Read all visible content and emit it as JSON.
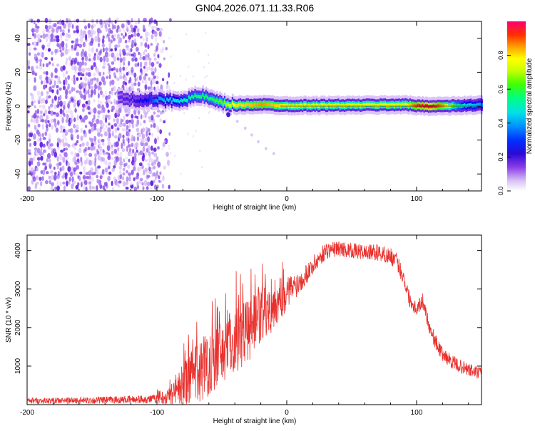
{
  "figure_title": "GN04.2026.071.11.33.R06",
  "colors": {
    "snr_line": "#e8302c",
    "frame": "#000000",
    "background": "#ffffff",
    "colormap": [
      "#ffffff",
      "#e6d2fa",
      "#b48cf0",
      "#7a2ee6",
      "#3010d8",
      "#0000ff",
      "#00a0ff",
      "#00e5e5",
      "#00ff80",
      "#40ff00",
      "#c0ff00",
      "#ffff00",
      "#ffb000",
      "#ff4000",
      "#ff0040",
      "#ff0080"
    ]
  },
  "chart_data": [
    {
      "type": "heatmap",
      "id": "spectrogram",
      "xlabel": "Height of straight line (km)",
      "ylabel": "Frequency (Hz)",
      "xlim": [
        -200,
        150
      ],
      "ylim": [
        -50,
        50
      ],
      "xticks": [
        -200,
        -100,
        0,
        100
      ],
      "yticks": [
        -40,
        -20,
        0,
        20,
        40
      ],
      "x_tick_labels": [
        "-200",
        "-100",
        "0",
        "100"
      ],
      "y_tick_labels": [
        "-40",
        "-20",
        "0",
        "20",
        "40"
      ],
      "colorbar": {
        "label": "Normalized spectral amplitude",
        "range": [
          0,
          1
        ],
        "ticks": [
          0.0,
          0.2,
          0.4,
          0.6,
          0.8
        ],
        "tick_labels": [
          "0.0",
          "0.2",
          "0.4",
          "0.6",
          "0.8"
        ]
      },
      "noise_region": {
        "x": [
          -200,
          -100
        ],
        "y": [
          -50,
          50
        ]
      },
      "ridge": {
        "x": [
          -130,
          -120,
          -110,
          -100,
          -90,
          -80,
          -70,
          -65,
          -60,
          -50,
          -40,
          -30,
          -20,
          -10,
          0,
          20,
          40,
          60,
          80,
          90,
          100,
          110,
          120,
          130,
          140,
          150
        ],
        "frequency": [
          4.5,
          4.0,
          3.8,
          3.5,
          3.2,
          4.0,
          5.5,
          6.0,
          4.0,
          1.5,
          0.5,
          0.8,
          1.0,
          0.6,
          0.3,
          0.4,
          0.5,
          0.6,
          0.8,
          0.9,
          0.2,
          0.0,
          0.0,
          0.2,
          0.5,
          0.8
        ],
        "amplitude": [
          0.22,
          0.25,
          0.32,
          0.4,
          0.45,
          0.5,
          0.55,
          0.55,
          0.55,
          0.62,
          0.75,
          0.78,
          0.82,
          0.78,
          0.72,
          0.72,
          0.7,
          0.72,
          0.72,
          0.7,
          0.88,
          0.95,
          0.8,
          0.55,
          0.45,
          0.4
        ]
      },
      "secondary_trail": {
        "x": [
          -45,
          -38,
          -32,
          -27,
          -22,
          -16,
          -10
        ],
        "frequency": [
          -5,
          -9,
          -13,
          -17,
          -21,
          -25,
          -28
        ]
      }
    },
    {
      "type": "line",
      "id": "snr",
      "xlabel": "Height of straight line (km)",
      "ylabel": "SNR (10 * v/v)",
      "xlim": [
        -200,
        150
      ],
      "ylim": [
        0,
        4400
      ],
      "xticks": [
        -200,
        -100,
        0,
        100
      ],
      "yticks": [
        1000,
        2000,
        3000,
        4000
      ],
      "x_tick_labels": [
        "-200",
        "-100",
        "0",
        "100"
      ],
      "y_tick_labels": [
        "1000",
        "2000",
        "3000",
        "4000"
      ],
      "series": [
        {
          "name": "SNR",
          "x": [
            -200,
            -180,
            -150,
            -120,
            -100,
            -90,
            -80,
            -70,
            -60,
            -50,
            -40,
            -30,
            -20,
            -10,
            0,
            10,
            20,
            30,
            40,
            50,
            60,
            70,
            80,
            85,
            90,
            95,
            100,
            105,
            110,
            115,
            120,
            130,
            140,
            150
          ],
          "base": [
            100,
            100,
            110,
            130,
            150,
            250,
            500,
            800,
            1100,
            1400,
            1700,
            2000,
            2300,
            2600,
            2900,
            3200,
            3600,
            4000,
            4050,
            4000,
            3950,
            3950,
            3850,
            3700,
            3300,
            2700,
            2500,
            2700,
            2000,
            1600,
            1300,
            1050,
            900,
            800
          ],
          "spread": [
            80,
            80,
            90,
            100,
            120,
            250,
            550,
            800,
            900,
            900,
            900,
            900,
            800,
            650,
            450,
            300,
            260,
            220,
            200,
            200,
            200,
            220,
            220,
            220,
            220,
            200,
            200,
            200,
            200,
            200,
            180,
            180,
            180,
            180
          ]
        }
      ]
    }
  ]
}
